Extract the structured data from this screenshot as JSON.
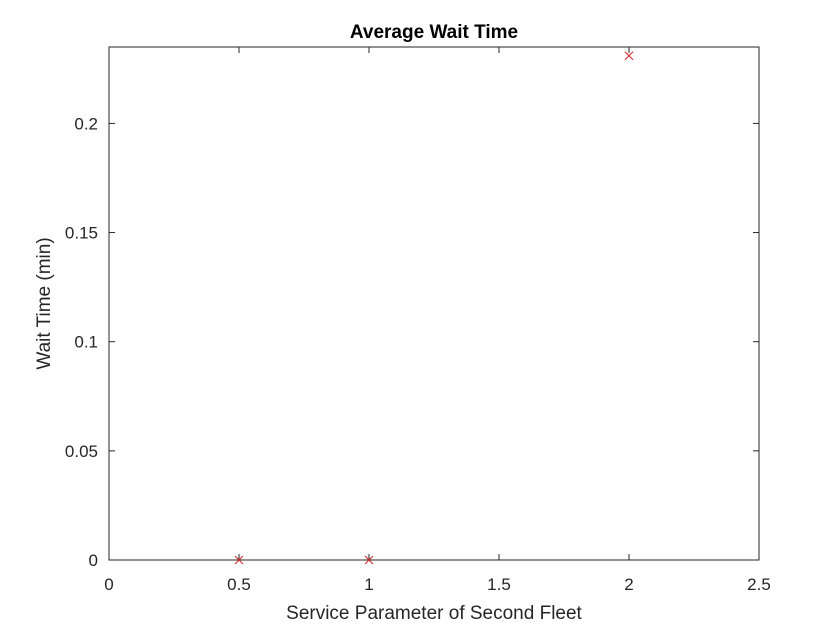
{
  "chart_data": {
    "type": "scatter",
    "title": "Average Wait Time",
    "xlabel": "Service Parameter of Second Fleet",
    "ylabel": "Wait Time (min)",
    "xlim": [
      0,
      2.5
    ],
    "ylim": [
      0,
      0.235
    ],
    "xticks": [
      0,
      0.5,
      1,
      1.5,
      2,
      2.5
    ],
    "xtick_labels": [
      "0",
      "0.5",
      "1",
      "1.5",
      "2",
      "2.5"
    ],
    "yticks": [
      0,
      0.05,
      0.1,
      0.15,
      0.2
    ],
    "ytick_labels": [
      "0",
      "0.05",
      "0.1",
      "0.15",
      "0.2"
    ],
    "grid": false,
    "box": true,
    "series": [
      {
        "marker": "x",
        "color": "#d62728",
        "points": [
          {
            "x": 0.5,
            "y": 0
          },
          {
            "x": 1,
            "y": 0
          },
          {
            "x": 2,
            "y": 0.231
          }
        ]
      }
    ]
  }
}
